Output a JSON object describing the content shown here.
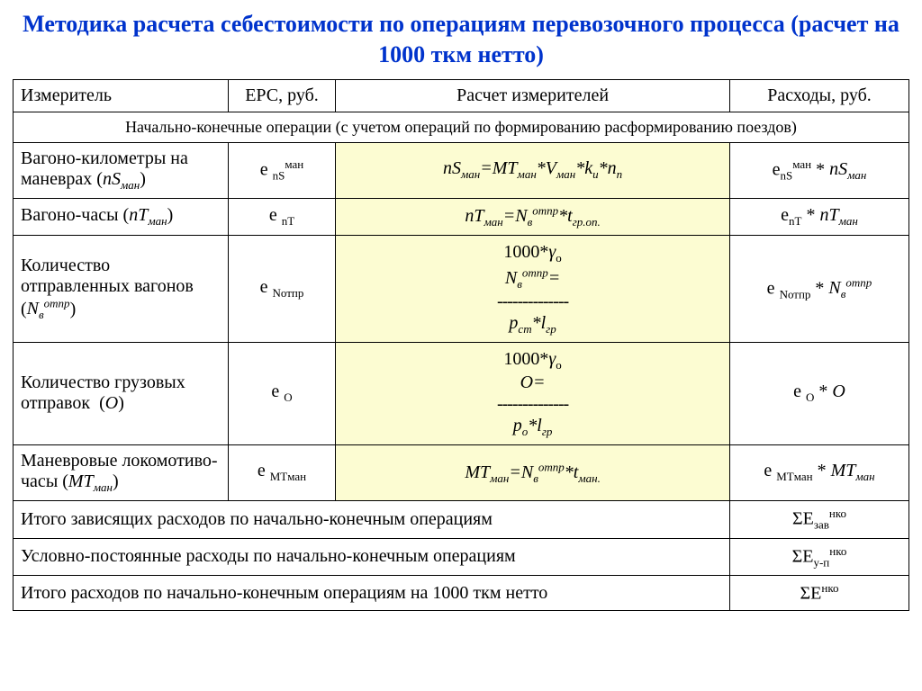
{
  "title": "Методика расчета себестоимости по операциям перевозочного процесса (расчет на 1000 ткм нетто)",
  "headers": {
    "measurer": "Измеритель",
    "erc": "ЕРС, руб.",
    "calc": "Расчет измерителей",
    "expense": "Расходы, руб."
  },
  "section": "Начально-конечные операции (с учетом операций по формированию расформированию поездов)",
  "rows": [
    {
      "measurer_html": "Вагоно-километры на маневрах (<span class='italic'>nS<span class='sub'>ман</span></span>)",
      "erc_html": "e <span class='sub'>nS</span><span class='sup'>ман</span>",
      "calc_html": "<span class='italic'>nS<span class='sub'>ман</span>=MT<span class='sub'>ман</span>*V<span class='sub'>ман</span>*k<span class='sub'>и</span>*n<span class='sub'>п</span></span>",
      "expense_html": "e<span class='sub'>nS</span><span class='sup'>ман</span> * <span class='italic'>nS<span class='sub'>ман</span></span>",
      "highlight": true
    },
    {
      "measurer_html": "Вагоно-часы (<span class='italic'>nT<span class='sub'>ман</span></span>)",
      "erc_html": "e <span class='sub'>nT</span>",
      "calc_html": "<span class='italic'>nT<span class='sub'>ман</span>=N<span class='sub'>в</span><span class='sup'>отпр</span>*t<span class='sub'>гр.оп.</span></span>",
      "expense_html": "e<span class='sub'>nT</span> * <span class='italic'>nT<span class='sub'>ман</span></span>",
      "highlight": true
    },
    {
      "measurer_html": "Количество отправленных вагонов (<span class='italic'>N<span class='sub'>в</span><span class='sup'>отпр</span></span>)",
      "erc_html": "e <span class='sub'>Nотпр</span>",
      "calc_html": "<span class='frac'><span class='num'>1000*<span class='italic'>γ</span><span class='sub'>о</span></span><span class='italic'>N<span class='sub'>в</span><span class='sup'>отпр</span>=</span><span class='dash'>--------------</span><span class='den italic'>p<span class='sub'>ст</span>*l<span class='sub'>гр</span></span></span>",
      "expense_html": "e <span class='sub'>Nотпр</span> * <span class='italic'>N<span class='sub'>в</span><span class='sup'>отпр</span></span>",
      "highlight": true
    },
    {
      "measurer_html": "Количество грузовых отправок &nbsp;(<span class='italic'>O</span>)",
      "erc_html": "e <span class='sub'>O</span>",
      "calc_html": "<span class='frac'><span class='num'>1000*<span class='italic'>γ</span><span class='sub'>о</span></span><span class='italic'>O=</span><span class='dash'>--------------</span><span class='den italic'>p<span class='sub'>о</span>*l<span class='sub'>гр</span></span></span>",
      "expense_html": "e <span class='sub'>O</span> * <span class='italic'>O</span>",
      "highlight": true
    },
    {
      "measurer_html": "Маневровые локомотиво-часы (<span class='italic'>MT<span class='sub'>ман</span></span>)",
      "erc_html": "e <span class='sub'>MTман</span>",
      "calc_html": "<span class='italic'>MT<span class='sub'>ман</span>=N<span class='sub'>в</span><span class='sup'>отпр</span>*t<span class='sub'>ман.</span></span>",
      "expense_html": "e <span class='sub'>MTман</span> * <span class='italic'>MT<span class='sub'>ман</span></span>",
      "highlight": true
    }
  ],
  "summary": [
    {
      "label": "Итого зависящих расходов по начально-конечным операциям",
      "exp_html": "ΣE<span class='sub'>зав</span><span class='sup'>нко</span>"
    },
    {
      "label": "Условно-постоянные расходы по начально-конечным операциям",
      "exp_html": "ΣE<span class='sub'>у-п</span><span class='sup'>нко</span>"
    },
    {
      "label": "Итого расходов по начально-конечным операциям на 1000 ткм нетто",
      "exp_html": "ΣE<span class='sup'>нко</span>"
    }
  ],
  "style": {
    "title_color": "#0033cc",
    "highlight_bg": "#fcfcd2",
    "border_color": "#000000",
    "font_family": "Times New Roman",
    "title_fontsize": 26,
    "cell_fontsize": 20
  }
}
